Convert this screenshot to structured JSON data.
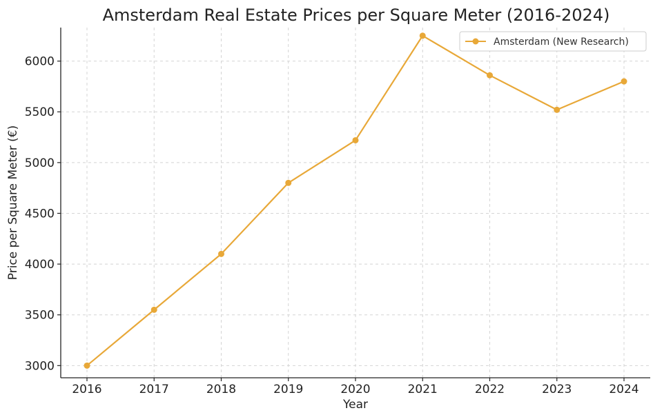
{
  "chart_data": {
    "type": "line",
    "title": "Amsterdam Real Estate Prices per Square Meter (2016-2024)",
    "xlabel": "Year",
    "ylabel": "Price per Square Meter (€)",
    "x": [
      2016,
      2017,
      2018,
      2019,
      2020,
      2021,
      2022,
      2023,
      2024
    ],
    "x_tick_labels": [
      "2016",
      "2017",
      "2018",
      "2019",
      "2020",
      "2021",
      "2022",
      "2023",
      "2024"
    ],
    "ylim": [
      2880,
      6330
    ],
    "y_ticks": [
      3000,
      3500,
      4000,
      4500,
      5000,
      5500,
      6000
    ],
    "y_tick_labels": [
      "3000",
      "3500",
      "4000",
      "4500",
      "5000",
      "5500",
      "6000"
    ],
    "grid": true,
    "legend_position": "top-right",
    "series": [
      {
        "name": "Amsterdam (New Research)",
        "color": "#E8A838",
        "marker": "circle",
        "values": [
          3000,
          3550,
          4100,
          4800,
          5220,
          6250,
          5860,
          5520,
          5800
        ]
      }
    ]
  }
}
